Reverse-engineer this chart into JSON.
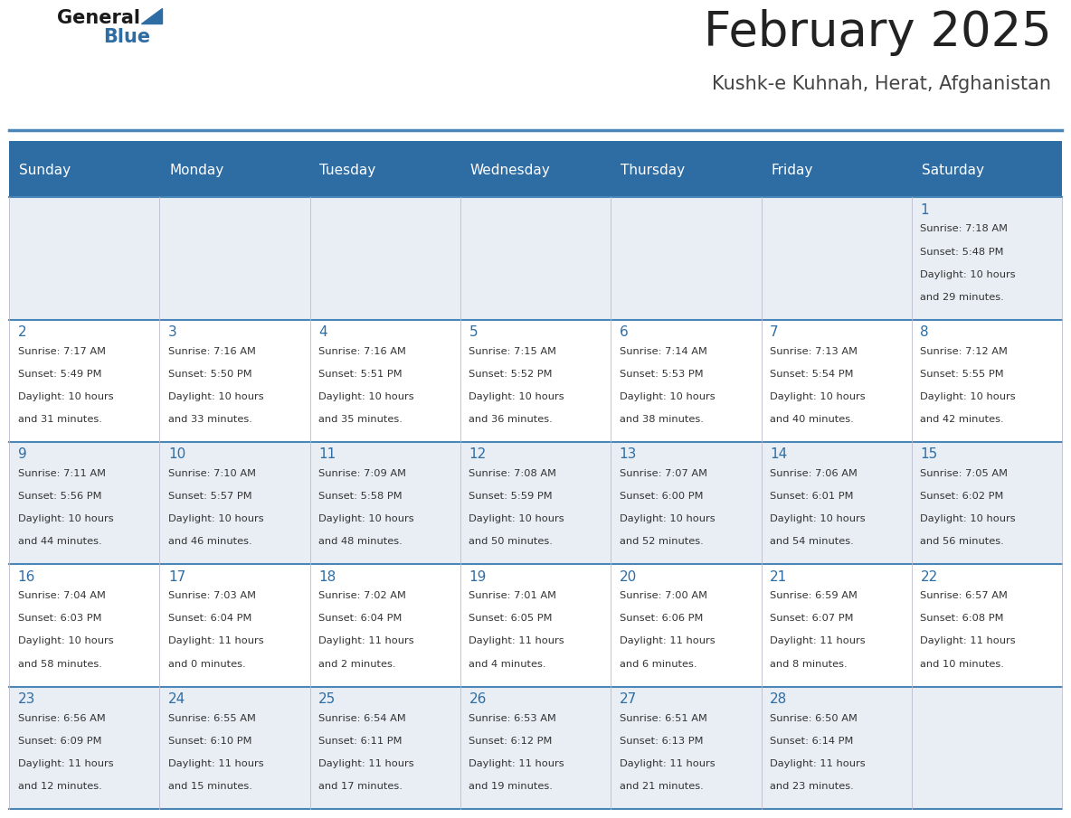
{
  "title": "February 2025",
  "subtitle": "Kushk-e Kuhnah, Herat, Afghanistan",
  "days_of_week": [
    "Sunday",
    "Monday",
    "Tuesday",
    "Wednesday",
    "Thursday",
    "Friday",
    "Saturday"
  ],
  "header_bg": "#2E6DA4",
  "header_text": "#FFFFFF",
  "cell_bg_light": "#E8EEF4",
  "cell_bg_white": "#FFFFFF",
  "title_color": "#222222",
  "subtitle_color": "#444444",
  "day_number_color": "#2E6DA4",
  "info_color": "#333333",
  "line_color": "#4A86B8",
  "calendar_data": [
    {
      "day": 1,
      "col": 6,
      "row": 0,
      "sunrise": "7:18 AM",
      "sunset": "5:48 PM",
      "daylight_h": "10 hours",
      "daylight_m": "and 29 minutes."
    },
    {
      "day": 2,
      "col": 0,
      "row": 1,
      "sunrise": "7:17 AM",
      "sunset": "5:49 PM",
      "daylight_h": "10 hours",
      "daylight_m": "and 31 minutes."
    },
    {
      "day": 3,
      "col": 1,
      "row": 1,
      "sunrise": "7:16 AM",
      "sunset": "5:50 PM",
      "daylight_h": "10 hours",
      "daylight_m": "and 33 minutes."
    },
    {
      "day": 4,
      "col": 2,
      "row": 1,
      "sunrise": "7:16 AM",
      "sunset": "5:51 PM",
      "daylight_h": "10 hours",
      "daylight_m": "and 35 minutes."
    },
    {
      "day": 5,
      "col": 3,
      "row": 1,
      "sunrise": "7:15 AM",
      "sunset": "5:52 PM",
      "daylight_h": "10 hours",
      "daylight_m": "and 36 minutes."
    },
    {
      "day": 6,
      "col": 4,
      "row": 1,
      "sunrise": "7:14 AM",
      "sunset": "5:53 PM",
      "daylight_h": "10 hours",
      "daylight_m": "and 38 minutes."
    },
    {
      "day": 7,
      "col": 5,
      "row": 1,
      "sunrise": "7:13 AM",
      "sunset": "5:54 PM",
      "daylight_h": "10 hours",
      "daylight_m": "and 40 minutes."
    },
    {
      "day": 8,
      "col": 6,
      "row": 1,
      "sunrise": "7:12 AM",
      "sunset": "5:55 PM",
      "daylight_h": "10 hours",
      "daylight_m": "and 42 minutes."
    },
    {
      "day": 9,
      "col": 0,
      "row": 2,
      "sunrise": "7:11 AM",
      "sunset": "5:56 PM",
      "daylight_h": "10 hours",
      "daylight_m": "and 44 minutes."
    },
    {
      "day": 10,
      "col": 1,
      "row": 2,
      "sunrise": "7:10 AM",
      "sunset": "5:57 PM",
      "daylight_h": "10 hours",
      "daylight_m": "and 46 minutes."
    },
    {
      "day": 11,
      "col": 2,
      "row": 2,
      "sunrise": "7:09 AM",
      "sunset": "5:58 PM",
      "daylight_h": "10 hours",
      "daylight_m": "and 48 minutes."
    },
    {
      "day": 12,
      "col": 3,
      "row": 2,
      "sunrise": "7:08 AM",
      "sunset": "5:59 PM",
      "daylight_h": "10 hours",
      "daylight_m": "and 50 minutes."
    },
    {
      "day": 13,
      "col": 4,
      "row": 2,
      "sunrise": "7:07 AM",
      "sunset": "6:00 PM",
      "daylight_h": "10 hours",
      "daylight_m": "and 52 minutes."
    },
    {
      "day": 14,
      "col": 5,
      "row": 2,
      "sunrise": "7:06 AM",
      "sunset": "6:01 PM",
      "daylight_h": "10 hours",
      "daylight_m": "and 54 minutes."
    },
    {
      "day": 15,
      "col": 6,
      "row": 2,
      "sunrise": "7:05 AM",
      "sunset": "6:02 PM",
      "daylight_h": "10 hours",
      "daylight_m": "and 56 minutes."
    },
    {
      "day": 16,
      "col": 0,
      "row": 3,
      "sunrise": "7:04 AM",
      "sunset": "6:03 PM",
      "daylight_h": "10 hours",
      "daylight_m": "and 58 minutes."
    },
    {
      "day": 17,
      "col": 1,
      "row": 3,
      "sunrise": "7:03 AM",
      "sunset": "6:04 PM",
      "daylight_h": "11 hours",
      "daylight_m": "and 0 minutes."
    },
    {
      "day": 18,
      "col": 2,
      "row": 3,
      "sunrise": "7:02 AM",
      "sunset": "6:04 PM",
      "daylight_h": "11 hours",
      "daylight_m": "and 2 minutes."
    },
    {
      "day": 19,
      "col": 3,
      "row": 3,
      "sunrise": "7:01 AM",
      "sunset": "6:05 PM",
      "daylight_h": "11 hours",
      "daylight_m": "and 4 minutes."
    },
    {
      "day": 20,
      "col": 4,
      "row": 3,
      "sunrise": "7:00 AM",
      "sunset": "6:06 PM",
      "daylight_h": "11 hours",
      "daylight_m": "and 6 minutes."
    },
    {
      "day": 21,
      "col": 5,
      "row": 3,
      "sunrise": "6:59 AM",
      "sunset": "6:07 PM",
      "daylight_h": "11 hours",
      "daylight_m": "and 8 minutes."
    },
    {
      "day": 22,
      "col": 6,
      "row": 3,
      "sunrise": "6:57 AM",
      "sunset": "6:08 PM",
      "daylight_h": "11 hours",
      "daylight_m": "and 10 minutes."
    },
    {
      "day": 23,
      "col": 0,
      "row": 4,
      "sunrise": "6:56 AM",
      "sunset": "6:09 PM",
      "daylight_h": "11 hours",
      "daylight_m": "and 12 minutes."
    },
    {
      "day": 24,
      "col": 1,
      "row": 4,
      "sunrise": "6:55 AM",
      "sunset": "6:10 PM",
      "daylight_h": "11 hours",
      "daylight_m": "and 15 minutes."
    },
    {
      "day": 25,
      "col": 2,
      "row": 4,
      "sunrise": "6:54 AM",
      "sunset": "6:11 PM",
      "daylight_h": "11 hours",
      "daylight_m": "and 17 minutes."
    },
    {
      "day": 26,
      "col": 3,
      "row": 4,
      "sunrise": "6:53 AM",
      "sunset": "6:12 PM",
      "daylight_h": "11 hours",
      "daylight_m": "and 19 minutes."
    },
    {
      "day": 27,
      "col": 4,
      "row": 4,
      "sunrise": "6:51 AM",
      "sunset": "6:13 PM",
      "daylight_h": "11 hours",
      "daylight_m": "and 21 minutes."
    },
    {
      "day": 28,
      "col": 5,
      "row": 4,
      "sunrise": "6:50 AM",
      "sunset": "6:14 PM",
      "daylight_h": "11 hours",
      "daylight_m": "and 23 minutes."
    }
  ]
}
